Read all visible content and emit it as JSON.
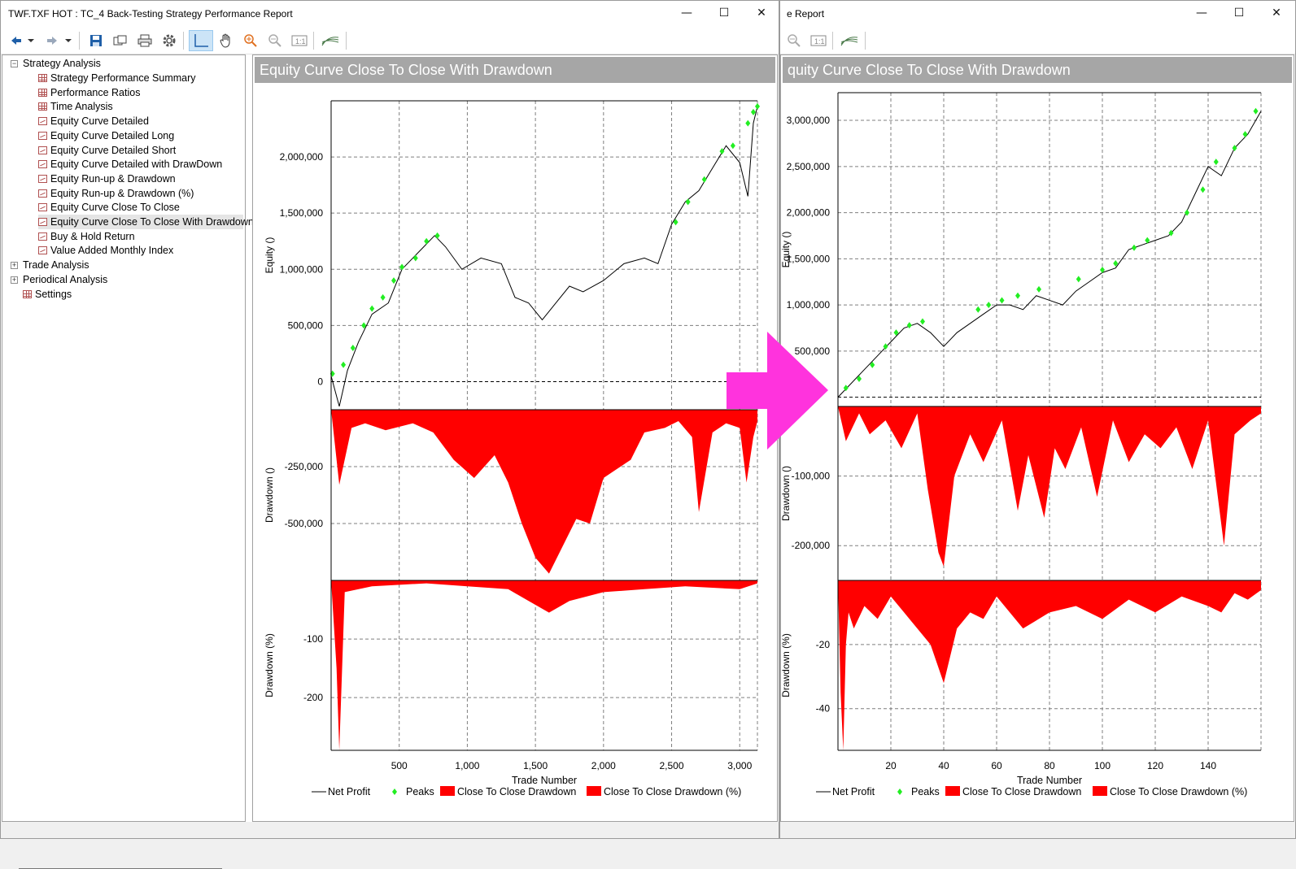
{
  "left_window": {
    "title": "TWF.TXF HOT : TC_4 Back-Testing Strategy Performance Report",
    "chart_title": "Equity Curve Close To Close With Drawdown"
  },
  "right_window": {
    "title": "e Report",
    "chart_title": "quity Curve Close To Close With Drawdown"
  },
  "window_buttons": {
    "minimize": "—",
    "maximize": "☐",
    "close": "✕"
  },
  "toolbar": [
    "back-arrow-icon",
    "dropdown-icon",
    "forward-arrow-icon",
    "dropdown-icon",
    "save-icon",
    "copy-icon",
    "print-icon",
    "settings-gear-icon",
    "crosshair-icon",
    "pan-hand-icon",
    "zoom-in-icon",
    "zoom-out-icon",
    "zoom-reset-icon",
    "chart-style-icon"
  ],
  "tree": {
    "strategy_analysis": "Strategy Analysis",
    "items": [
      {
        "label": "Strategy Performance Summary",
        "icon": "grid"
      },
      {
        "label": "Performance Ratios",
        "icon": "grid"
      },
      {
        "label": "Time Analysis",
        "icon": "grid"
      },
      {
        "label": "Equity Curve Detailed",
        "icon": "line"
      },
      {
        "label": "Equity Curve Detailed Long",
        "icon": "line"
      },
      {
        "label": "Equity Curve Detailed Short",
        "icon": "line"
      },
      {
        "label": "Equity Curve Detailed with DrawDown",
        "icon": "line"
      },
      {
        "label": "Equity Run-up & Drawdown",
        "icon": "line"
      },
      {
        "label": "Equity Run-up & Drawdown (%)",
        "icon": "line"
      },
      {
        "label": "Equity Curve Close To Close",
        "icon": "line"
      },
      {
        "label": "Equity Curve Close To Close With Drawdown",
        "icon": "line",
        "selected": true
      },
      {
        "label": "Buy & Hold Return",
        "icon": "line"
      },
      {
        "label": "Value Added Monthly Index",
        "icon": "line"
      }
    ],
    "trade_analysis": "Trade Analysis",
    "periodical_analysis": "Periodical Analysis",
    "settings": "Settings"
  },
  "colors": {
    "equity_line": "#000000",
    "peaks": "#22ee22",
    "drawdown": "#ff0000",
    "grid": "#7f7f7f",
    "header_bg": "#a6a6a6",
    "arrow": "#ff33dd"
  },
  "chart_data": [
    {
      "type": "line",
      "title": "Equity Curve Close To Close With Drawdown",
      "xlabel": "Trade Number",
      "x_ticks": [
        "500",
        "1,000",
        "1,500",
        "2,000",
        "2,500",
        "3,000"
      ],
      "xlim": [
        0,
        3130
      ],
      "panes": [
        {
          "name": "equity",
          "ylabel": "Equity ()",
          "ylim": [
            -250000,
            2500000
          ],
          "ticks": [
            "2,000,000",
            "1,500,000",
            "1,000,000",
            "500,000",
            "0"
          ],
          "series": [
            {
              "name": "Net Profit",
              "x": [
                0,
                60,
                120,
                200,
                300,
                420,
                520,
                600,
                680,
                760,
                840,
                960,
                1100,
                1250,
                1350,
                1450,
                1550,
                1650,
                1750,
                1850,
                2000,
                2150,
                2300,
                2400,
                2500,
                2600,
                2700,
                2800,
                2900,
                3000,
                3060,
                3100,
                3130
              ],
              "y": [
                50000,
                -220000,
                100000,
                350000,
                600000,
                700000,
                1000000,
                1100000,
                1200000,
                1300000,
                1200000,
                1000000,
                1100000,
                1050000,
                750000,
                700000,
                550000,
                700000,
                850000,
                800000,
                900000,
                1050000,
                1100000,
                1050000,
                1400000,
                1600000,
                1700000,
                1900000,
                2100000,
                1950000,
                1650000,
                2300000,
                2450000
              ]
            },
            {
              "name": "Peaks",
              "x": [
                10,
                90,
                160,
                240,
                300,
                380,
                460,
                520,
                620,
                700,
                780,
                2530,
                2620,
                2740,
                2870,
                2950,
                3060,
                3100,
                3130
              ],
              "y": [
                70000,
                150000,
                300000,
                500000,
                650000,
                750000,
                900000,
                1020000,
                1100000,
                1250000,
                1300000,
                1420000,
                1600000,
                1800000,
                2050000,
                2100000,
                2300000,
                2400000,
                2450000
              ]
            }
          ]
        },
        {
          "name": "drawdown",
          "ylabel": "Drawdown ()",
          "ylim": [
            -750000,
            0
          ],
          "ticks": [
            "-250,000",
            "-500,000"
          ],
          "series": [
            {
              "name": "Close To Close Drawdown",
              "x": [
                0,
                60,
                150,
                250,
                400,
                600,
                750,
                900,
                1050,
                1200,
                1300,
                1400,
                1500,
                1600,
                1700,
                1800,
                1900,
                2000,
                2100,
                2200,
                2300,
                2450,
                2550,
                2650,
                2700,
                2800,
                2900,
                3000,
                3050,
                3100,
                3130
              ],
              "y": [
                0,
                -330000,
                -80000,
                -60000,
                -90000,
                -60000,
                -100000,
                -220000,
                -300000,
                -200000,
                -320000,
                -500000,
                -650000,
                -720000,
                -600000,
                -480000,
                -500000,
                -300000,
                -260000,
                -220000,
                -100000,
                -80000,
                -50000,
                -120000,
                -450000,
                -100000,
                -60000,
                -80000,
                -320000,
                -120000,
                -50000
              ]
            }
          ]
        },
        {
          "name": "drawdown_pct",
          "ylabel": "Drawdown (%)",
          "ylim": [
            -290,
            0
          ],
          "ticks": [
            "-100",
            "-200"
          ],
          "series": [
            {
              "name": "Close To Close Drawdown (%)",
              "x": [
                0,
                40,
                60,
                100,
                300,
                700,
                1000,
                1300,
                1450,
                1600,
                1750,
                2000,
                2300,
                2600,
                3000,
                3130
              ],
              "y": [
                0,
                -150,
                -290,
                -20,
                -10,
                -5,
                -10,
                -15,
                -35,
                -55,
                -35,
                -20,
                -15,
                -10,
                -15,
                -5
              ]
            }
          ]
        }
      ],
      "legend": [
        "Net Profit",
        "Peaks",
        "Close To Close Drawdown",
        "Close To Close Drawdown (%)"
      ],
      "legend_position": "bottom"
    },
    {
      "type": "line",
      "title": "quity Curve Close To Close With Drawdown",
      "xlabel": "Trade Number",
      "x_ticks": [
        "20",
        "40",
        "60",
        "80",
        "100",
        "120",
        "140"
      ],
      "xlim": [
        0,
        160
      ],
      "panes": [
        {
          "name": "equity",
          "ylabel": "Equity ()",
          "ylim": [
            -100000,
            3300000
          ],
          "ticks": [
            "3,000,000",
            "2,500,000",
            "2,000,000",
            "1,500,000",
            "1,000,000",
            "500,000"
          ],
          "series": [
            {
              "name": "Net Profit",
              "x": [
                0,
                5,
                10,
                15,
                20,
                25,
                30,
                35,
                40,
                45,
                50,
                55,
                60,
                65,
                70,
                75,
                80,
                85,
                90,
                95,
                100,
                105,
                110,
                115,
                120,
                125,
                130,
                135,
                140,
                145,
                150,
                155,
                160
              ],
              "y": [
                0,
                150000,
                300000,
                450000,
                600000,
                750000,
                800000,
                700000,
                550000,
                700000,
                800000,
                900000,
                1000000,
                1000000,
                950000,
                1100000,
                1050000,
                1000000,
                1150000,
                1250000,
                1350000,
                1400000,
                1600000,
                1650000,
                1700000,
                1750000,
                1900000,
                2200000,
                2500000,
                2400000,
                2700000,
                2850000,
                3100000
              ]
            },
            {
              "name": "Peaks",
              "x": [
                3,
                8,
                13,
                18,
                22,
                27,
                32,
                53,
                57,
                62,
                68,
                76,
                91,
                100,
                105,
                112,
                117,
                126,
                132,
                138,
                143,
                150,
                154,
                158
              ],
              "y": [
                100000,
                200000,
                350000,
                550000,
                700000,
                780000,
                820000,
                950000,
                1000000,
                1050000,
                1100000,
                1170000,
                1280000,
                1380000,
                1450000,
                1620000,
                1700000,
                1780000,
                2000000,
                2250000,
                2550000,
                2700000,
                2850000,
                3100000
              ]
            }
          ]
        },
        {
          "name": "drawdown",
          "ylabel": "Drawdown ()",
          "ylim": [
            -250000,
            0
          ],
          "ticks": [
            "-100,000",
            "-200,000"
          ],
          "series": [
            {
              "name": "Close To Close Drawdown",
              "x": [
                0,
                3,
                8,
                12,
                18,
                24,
                30,
                34,
                38,
                40,
                44,
                50,
                55,
                62,
                68,
                72,
                78,
                82,
                86,
                92,
                98,
                104,
                110,
                116,
                122,
                128,
                134,
                140,
                146,
                150,
                156,
                160
              ],
              "y": [
                0,
                -50000,
                -10000,
                -40000,
                -20000,
                -60000,
                -10000,
                -120000,
                -210000,
                -230000,
                -100000,
                -40000,
                -80000,
                -20000,
                -150000,
                -70000,
                -160000,
                -60000,
                -90000,
                -30000,
                -130000,
                -20000,
                -80000,
                -40000,
                -60000,
                -30000,
                -90000,
                -20000,
                -200000,
                -40000,
                -20000,
                -10000
              ]
            }
          ]
        },
        {
          "name": "drawdown_pct",
          "ylabel": "Drawdown (%)",
          "ylim": [
            -53,
            0
          ],
          "ticks": [
            "-20",
            "-40"
          ],
          "series": [
            {
              "name": "Close To Close Drawdown (%)",
              "x": [
                0,
                1,
                2,
                3,
                4,
                6,
                10,
                15,
                20,
                25,
                30,
                35,
                40,
                45,
                50,
                55,
                60,
                70,
                80,
                90,
                100,
                110,
                120,
                130,
                140,
                145,
                150,
                155,
                160
              ],
              "y": [
                0,
                -35,
                -53,
                -20,
                -10,
                -15,
                -8,
                -12,
                -5,
                -10,
                -15,
                -20,
                -32,
                -15,
                -10,
                -12,
                -5,
                -15,
                -10,
                -8,
                -12,
                -6,
                -10,
                -5,
                -8,
                -10,
                -4,
                -6,
                -3
              ]
            }
          ]
        }
      ],
      "legend": [
        "Net Profit",
        "Peaks",
        "Close To Close Drawdown",
        "Close To Close Drawdown (%)"
      ],
      "legend_position": "bottom"
    }
  ]
}
